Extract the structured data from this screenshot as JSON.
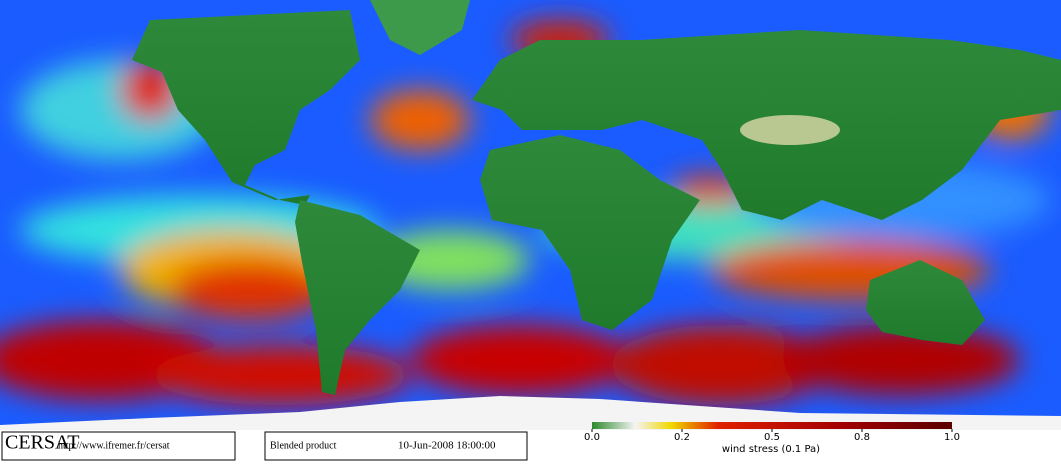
{
  "logo": "CERSAT",
  "url": "http://www.ifremer.fr/cersat",
  "product": "Blended product",
  "datetime": "10-Jun-2008 18:00:00",
  "colorbar": {
    "label": "wind stress (0.1 Pa)",
    "lim": [
      0,
      1
    ],
    "ticks": [
      {
        "value": 0,
        "label": "0.0"
      },
      {
        "value": 0.2,
        "label": "0.2"
      },
      {
        "value": 0.5,
        "label": "0.5"
      },
      {
        "value": 0.8,
        "label": "0.8"
      },
      {
        "value": 1,
        "label": "1.0"
      }
    ]
  }
}
